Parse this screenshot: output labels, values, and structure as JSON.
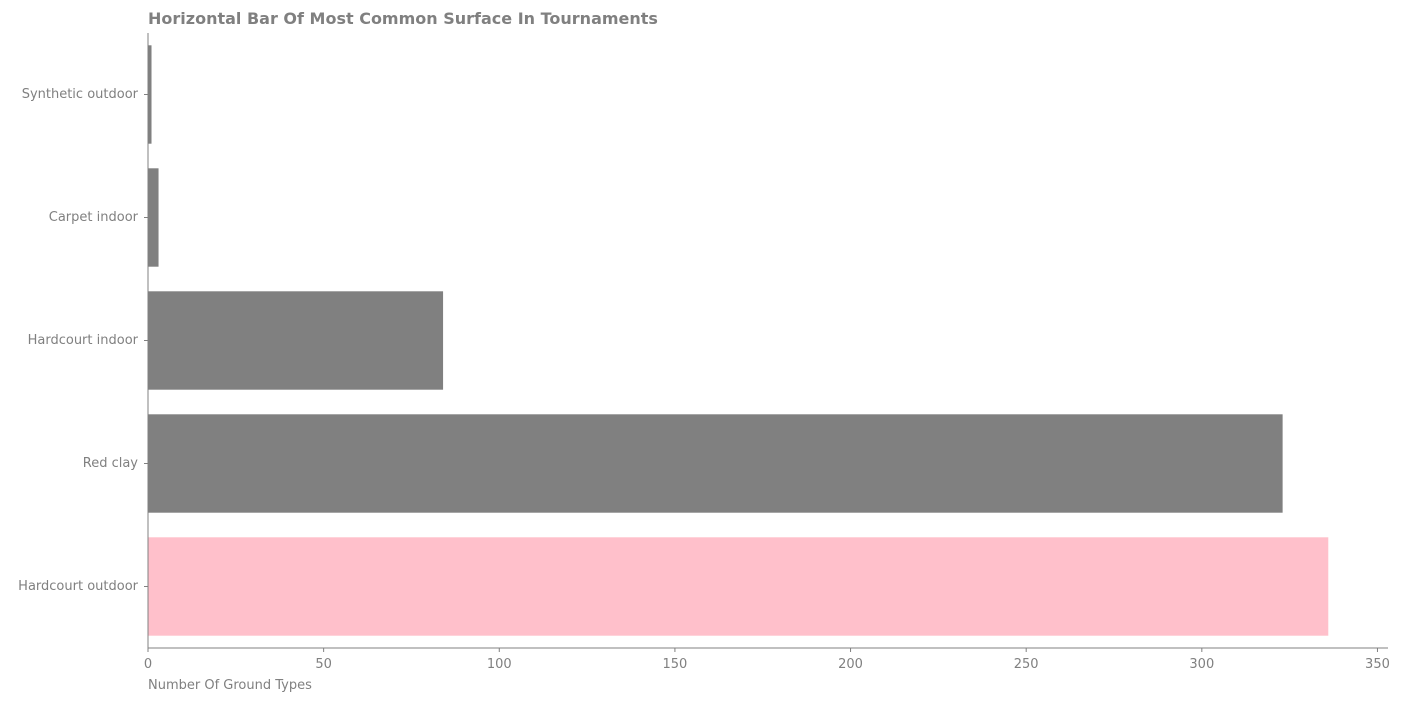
{
  "chart_data": {
    "type": "bar",
    "orientation": "horizontal",
    "title": "Horizontal Bar Of Most Common Surface In Tournaments",
    "xlabel": "Number Of Ground Types",
    "ylabel": "",
    "categories": [
      "Hardcourt outdoor",
      "Red clay",
      "Hardcourt indoor",
      "Carpet indoor",
      "Synthetic outdoor"
    ],
    "values": [
      336,
      323,
      84,
      3,
      1
    ],
    "bar_colors": [
      "#ffc0cb",
      "#808080",
      "#808080",
      "#808080",
      "#808080"
    ],
    "xlim": [
      0,
      353
    ],
    "xticks": [
      0,
      50,
      100,
      150,
      200,
      250,
      300,
      350
    ],
    "grid": false,
    "legend": "none"
  }
}
